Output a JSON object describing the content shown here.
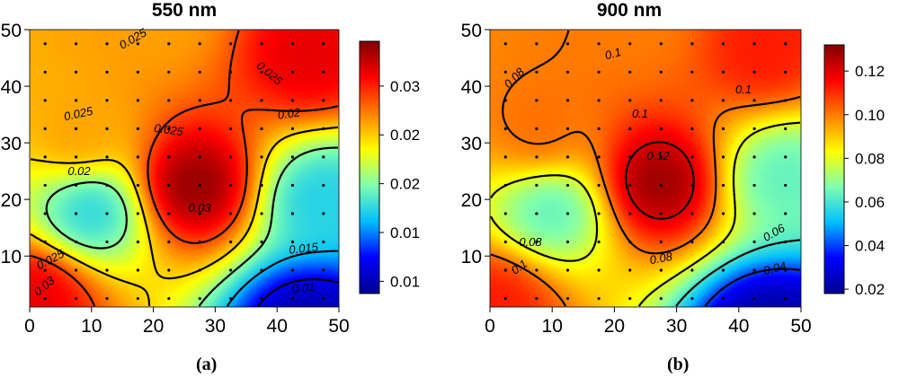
{
  "chart_data": [
    {
      "type": "heatmap",
      "subtype": "contour",
      "title": "550 nm",
      "panel_label": "(a)",
      "x_ticks": [
        "0",
        "10",
        "20",
        "30",
        "40",
        "50"
      ],
      "y_ticks": [
        "10",
        "20",
        "30",
        "40",
        "50"
      ],
      "xlim": [
        0,
        50
      ],
      "ylim": [
        1,
        50
      ],
      "colorbar_ticks": [
        "0.01",
        "0.01",
        "0.02",
        "0.02",
        "0.03"
      ],
      "colorbar_range": [
        0.006,
        0.037
      ],
      "colormap": [
        "#00008f",
        "#0000ff",
        "#00bfff",
        "#7fffaf",
        "#ffff00",
        "#ff8000",
        "#ff0000",
        "#800000"
      ],
      "contour_labels": [
        "0.025",
        "0.025",
        "0.025",
        "0.025",
        "0.02",
        "0.02",
        "0.03",
        "0.025",
        "0.03",
        "0.015",
        "0.01"
      ],
      "features": [
        {
          "x": 26.5,
          "y": 22.5,
          "value": 0.0368
        },
        {
          "x": 45,
          "y": 45,
          "value": 0.0335
        },
        {
          "x": 1,
          "y": 3,
          "value": 0.0335
        },
        {
          "x": 8,
          "y": 31,
          "value": 0.027
        },
        {
          "x": 21,
          "y": 52,
          "value": 0.027
        },
        {
          "x": 10,
          "y": 18,
          "value": 0.016
        },
        {
          "x": 47,
          "y": 20,
          "value": 0.016
        },
        {
          "x": 45,
          "y": -2,
          "value": 0.007
        }
      ]
    },
    {
      "type": "heatmap",
      "subtype": "contour",
      "title": "900 nm",
      "panel_label": "(b)",
      "x_ticks": [
        "0",
        "10",
        "20",
        "30",
        "40",
        "50"
      ],
      "y_ticks": [
        "10",
        "20",
        "30",
        "40",
        "50"
      ],
      "xlim": [
        0,
        50
      ],
      "ylim": [
        1,
        50
      ],
      "colorbar_ticks": [
        "0.02",
        "0.04",
        "0.06",
        "0.08",
        "0.10",
        "0.12"
      ],
      "colorbar_range": [
        0.018,
        0.132
      ],
      "colormap": [
        "#00008f",
        "#0000ff",
        "#00bfff",
        "#7fffaf",
        "#ffff00",
        "#ff8000",
        "#ff0000",
        "#800000"
      ],
      "contour_labels": [
        "0.1",
        "0.1",
        "0.08",
        "0.1",
        "0.12",
        "0.08",
        "0.1",
        "0.08",
        "0.06",
        "0.04"
      ],
      "features": [
        {
          "x": 27,
          "y": 23,
          "value": 0.13
        },
        {
          "x": 44,
          "y": 46,
          "value": 0.113
        },
        {
          "x": 1,
          "y": 2,
          "value": 0.113
        },
        {
          "x": 8,
          "y": 32,
          "value": 0.102
        },
        {
          "x": 24,
          "y": 51,
          "value": 0.1
        },
        {
          "x": 10,
          "y": 18,
          "value": 0.062
        },
        {
          "x": 47,
          "y": 24,
          "value": 0.063
        },
        {
          "x": 45,
          "y": -3,
          "value": 0.02
        }
      ]
    }
  ]
}
